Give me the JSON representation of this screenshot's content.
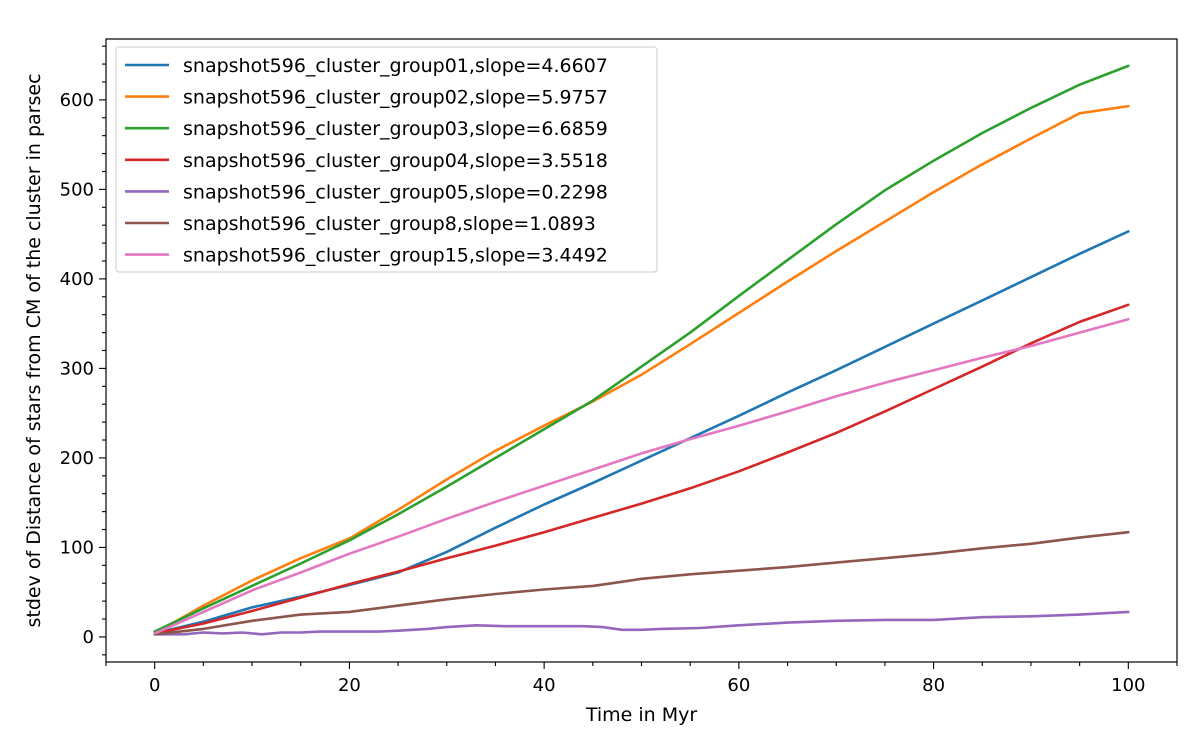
{
  "chart_data": {
    "type": "line",
    "title": "",
    "xlabel": "Time in Myr",
    "ylabel": "stdev of Distance of stars from CM of the cluster in parsec",
    "xlim": [
      -5,
      105
    ],
    "ylim": [
      -28,
      668
    ],
    "xticks": [
      0,
      20,
      40,
      60,
      80,
      100
    ],
    "yticks": [
      0,
      100,
      200,
      300,
      400,
      500,
      600
    ],
    "grid": false,
    "legend_position": "upper-left",
    "series": [
      {
        "name": "snapshot596_cluster_group01,slope=4.6607",
        "color": "#1f77b4",
        "points": [
          [
            0,
            4
          ],
          [
            5,
            17
          ],
          [
            10,
            33
          ],
          [
            15,
            45
          ],
          [
            20,
            58
          ],
          [
            25,
            72
          ],
          [
            30,
            95
          ],
          [
            35,
            122
          ],
          [
            40,
            148
          ],
          [
            45,
            172
          ],
          [
            50,
            197
          ],
          [
            55,
            222
          ],
          [
            60,
            247
          ],
          [
            65,
            273
          ],
          [
            70,
            298
          ],
          [
            75,
            324
          ],
          [
            80,
            350
          ],
          [
            85,
            376
          ],
          [
            90,
            402
          ],
          [
            95,
            428
          ],
          [
            100,
            453
          ]
        ]
      },
      {
        "name": "snapshot596_cluster_group02,slope=5.9757",
        "color": "#ff7f0e",
        "points": [
          [
            0,
            4
          ],
          [
            5,
            35
          ],
          [
            10,
            63
          ],
          [
            15,
            88
          ],
          [
            20,
            110
          ],
          [
            25,
            142
          ],
          [
            30,
            176
          ],
          [
            35,
            208
          ],
          [
            40,
            236
          ],
          [
            45,
            263
          ],
          [
            50,
            293
          ],
          [
            55,
            327
          ],
          [
            60,
            362
          ],
          [
            65,
            397
          ],
          [
            70,
            431
          ],
          [
            75,
            464
          ],
          [
            80,
            497
          ],
          [
            85,
            528
          ],
          [
            90,
            557
          ],
          [
            95,
            585
          ],
          [
            100,
            593
          ]
        ]
      },
      {
        "name": "snapshot596_cluster_group03,slope=6.6859",
        "color": "#2ca02c",
        "points": [
          [
            0,
            6
          ],
          [
            5,
            32
          ],
          [
            10,
            57
          ],
          [
            15,
            82
          ],
          [
            20,
            108
          ],
          [
            25,
            137
          ],
          [
            30,
            168
          ],
          [
            35,
            200
          ],
          [
            40,
            232
          ],
          [
            45,
            264
          ],
          [
            50,
            302
          ],
          [
            55,
            340
          ],
          [
            60,
            381
          ],
          [
            65,
            421
          ],
          [
            70,
            461
          ],
          [
            75,
            499
          ],
          [
            80,
            532
          ],
          [
            85,
            563
          ],
          [
            90,
            591
          ],
          [
            95,
            617
          ],
          [
            100,
            638
          ]
        ]
      },
      {
        "name": "snapshot596_cluster_group04,slope=3.5518",
        "color": "#d62728",
        "points": [
          [
            0,
            4
          ],
          [
            5,
            15
          ],
          [
            10,
            29
          ],
          [
            15,
            44
          ],
          [
            20,
            59
          ],
          [
            25,
            73
          ],
          [
            30,
            88
          ],
          [
            35,
            102
          ],
          [
            40,
            117
          ],
          [
            45,
            133
          ],
          [
            50,
            149
          ],
          [
            55,
            166
          ],
          [
            60,
            185
          ],
          [
            65,
            206
          ],
          [
            70,
            228
          ],
          [
            75,
            252
          ],
          [
            80,
            277
          ],
          [
            85,
            302
          ],
          [
            90,
            328
          ],
          [
            95,
            352
          ],
          [
            100,
            371
          ]
        ]
      },
      {
        "name": "snapshot596_cluster_group05,slope=0.2298",
        "color": "#9467bd",
        "points": [
          [
            0,
            3
          ],
          [
            3,
            3
          ],
          [
            5,
            5
          ],
          [
            7,
            4
          ],
          [
            9,
            5
          ],
          [
            11,
            3
          ],
          [
            13,
            5
          ],
          [
            15,
            5
          ],
          [
            17,
            6
          ],
          [
            19,
            6
          ],
          [
            21,
            6
          ],
          [
            23,
            6
          ],
          [
            25,
            7
          ],
          [
            28,
            9
          ],
          [
            30,
            11
          ],
          [
            33,
            13
          ],
          [
            36,
            12
          ],
          [
            40,
            12
          ],
          [
            44,
            12
          ],
          [
            46,
            11
          ],
          [
            48,
            8
          ],
          [
            50,
            8
          ],
          [
            52,
            9
          ],
          [
            56,
            10
          ],
          [
            60,
            13
          ],
          [
            65,
            16
          ],
          [
            70,
            18
          ],
          [
            75,
            19
          ],
          [
            80,
            19
          ],
          [
            85,
            22
          ],
          [
            90,
            23
          ],
          [
            95,
            25
          ],
          [
            100,
            28
          ]
        ]
      },
      {
        "name": "snapshot596_cluster_group8,slope=1.0893",
        "color": "#8c564b",
        "points": [
          [
            0,
            3
          ],
          [
            5,
            9
          ],
          [
            10,
            18
          ],
          [
            15,
            25
          ],
          [
            20,
            28
          ],
          [
            25,
            35
          ],
          [
            30,
            42
          ],
          [
            35,
            48
          ],
          [
            40,
            53
          ],
          [
            45,
            57
          ],
          [
            47,
            60
          ],
          [
            50,
            65
          ],
          [
            55,
            70
          ],
          [
            60,
            74
          ],
          [
            65,
            78
          ],
          [
            70,
            83
          ],
          [
            75,
            88
          ],
          [
            80,
            93
          ],
          [
            85,
            99
          ],
          [
            90,
            104
          ],
          [
            95,
            111
          ],
          [
            100,
            117
          ]
        ]
      },
      {
        "name": "snapshot596_cluster_group15,slope=3.4492",
        "color": "#e377c2",
        "points": [
          [
            0,
            4
          ],
          [
            5,
            28
          ],
          [
            10,
            52
          ],
          [
            15,
            72
          ],
          [
            20,
            93
          ],
          [
            25,
            112
          ],
          [
            30,
            132
          ],
          [
            35,
            151
          ],
          [
            40,
            169
          ],
          [
            45,
            187
          ],
          [
            50,
            205
          ],
          [
            55,
            221
          ],
          [
            60,
            236
          ],
          [
            65,
            252
          ],
          [
            70,
            269
          ],
          [
            75,
            284
          ],
          [
            80,
            298
          ],
          [
            85,
            312
          ],
          [
            90,
            325
          ],
          [
            95,
            340
          ],
          [
            100,
            355
          ]
        ]
      }
    ]
  }
}
